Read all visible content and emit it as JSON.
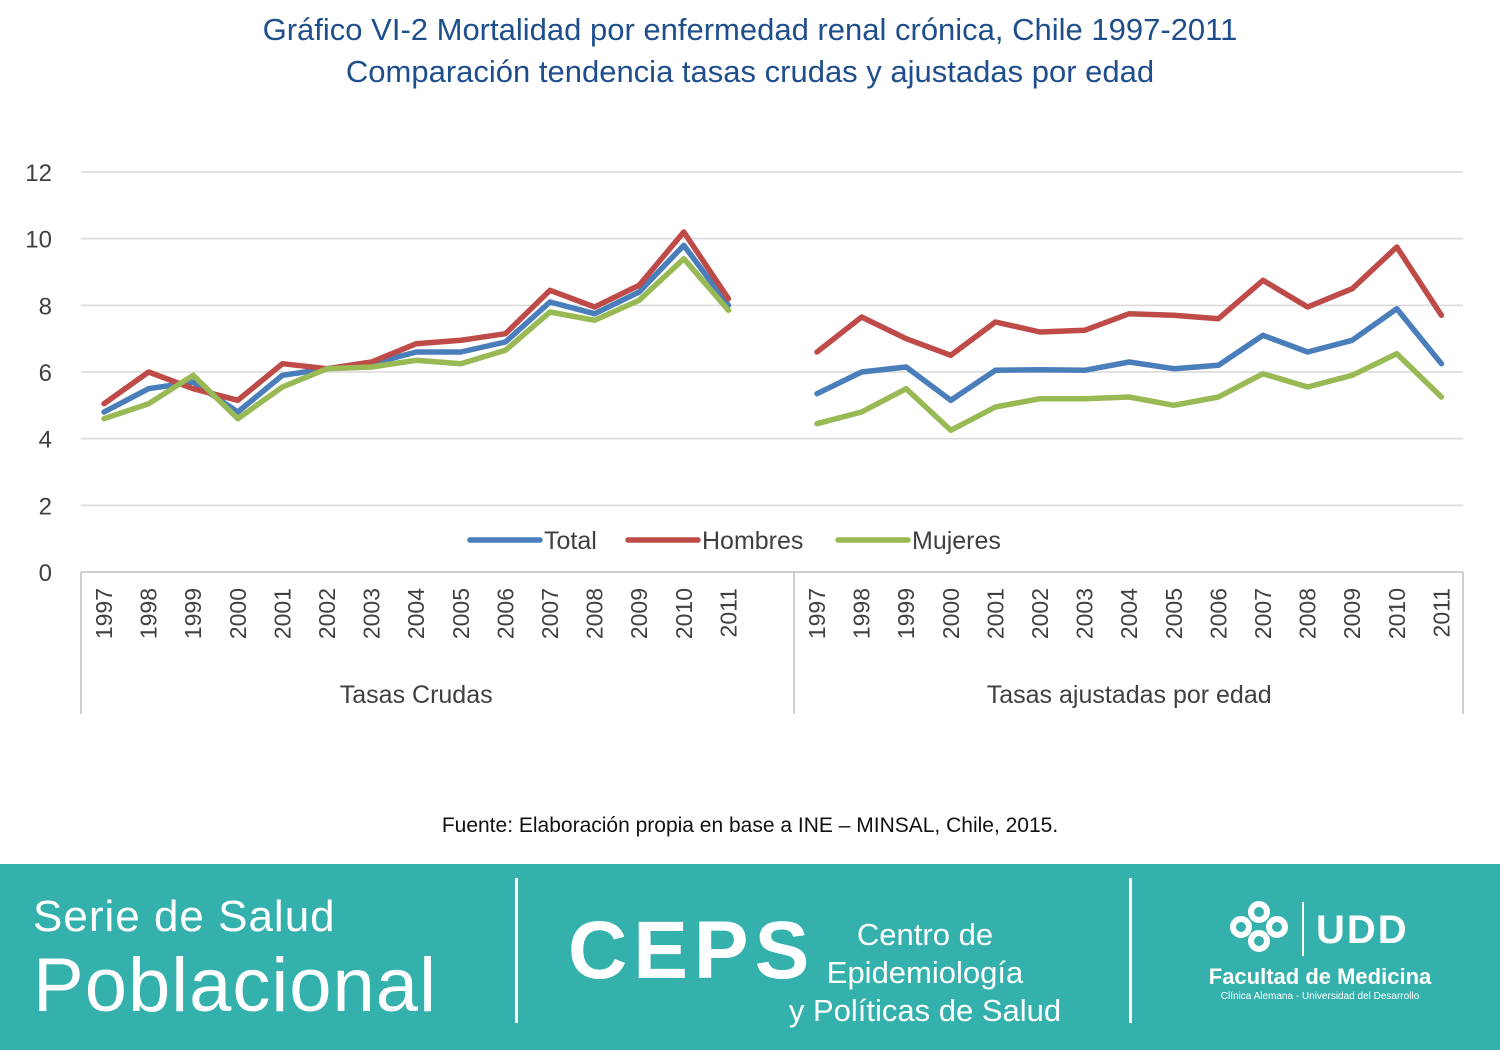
{
  "title_line1": "Gráfico VI-2 Mortalidad por enfermedad renal crónica, Chile 1997-2011",
  "title_line2": "Comparación tendencia tasas crudas y ajustadas por edad",
  "source": "Fuente: Elaboración propia en base a INE – MINSAL, Chile, 2015.",
  "footer": {
    "serie_line1": "Serie de Salud",
    "serie_line2": "Poblacional",
    "ceps": "CEPS",
    "ceps_line1": "Centro de Epidemiología",
    "ceps_line2": "y Políticas de Salud",
    "udd": "UDD",
    "facultad": "Facultad de Medicina",
    "facultad_sub": "Clínica Alemana - Universidad del Desarrollo"
  },
  "chart_data": {
    "type": "line",
    "title": "Gráfico VI-2 Mortalidad por enfermedad renal crónica, Chile 1997-2011",
    "subtitle": "Comparación tendencia tasas crudas y ajustadas por edad",
    "xlabel": "",
    "ylabel": "",
    "ylim": [
      0,
      12
    ],
    "yticks": [
      0,
      2,
      4,
      6,
      8,
      10,
      12
    ],
    "grid": true,
    "legend_position": "bottom-inside",
    "groups": [
      {
        "label": "Tasas Crudas",
        "categories": [
          "1997",
          "1998",
          "1999",
          "2000",
          "2001",
          "2002",
          "2003",
          "2004",
          "2005",
          "2006",
          "2007",
          "2008",
          "2009",
          "2010",
          "2011"
        ]
      },
      {
        "label": "Tasas ajustadas por edad",
        "categories": [
          "1997",
          "1998",
          "1999",
          "2000",
          "2001",
          "2002",
          "2003",
          "2004",
          "2005",
          "2006",
          "2007",
          "2008",
          "2009",
          "2010",
          "2011"
        ]
      }
    ],
    "series": [
      {
        "name": "Total",
        "color": "#4a7ebb",
        "values": [
          [
            4.8,
            5.5,
            5.7,
            4.8,
            5.9,
            6.1,
            6.25,
            6.6,
            6.6,
            6.9,
            8.1,
            7.75,
            8.4,
            9.8,
            8.0
          ],
          [
            5.35,
            6.0,
            6.15,
            5.15,
            6.05,
            6.07,
            6.05,
            6.3,
            6.1,
            6.2,
            7.1,
            6.6,
            6.95,
            7.9,
            6.25
          ]
        ]
      },
      {
        "name": "Hombres",
        "color": "#be4b48",
        "values": [
          [
            5.05,
            6.0,
            5.5,
            5.15,
            6.25,
            6.1,
            6.3,
            6.85,
            6.95,
            7.15,
            8.45,
            7.95,
            8.6,
            10.2,
            8.2
          ],
          [
            6.6,
            7.65,
            7.0,
            6.5,
            7.5,
            7.2,
            7.25,
            7.75,
            7.7,
            7.6,
            8.75,
            7.95,
            8.5,
            9.75,
            7.7
          ]
        ]
      },
      {
        "name": "Mujeres",
        "color": "#98b954",
        "values": [
          [
            4.6,
            5.05,
            5.9,
            4.6,
            5.55,
            6.1,
            6.15,
            6.35,
            6.25,
            6.65,
            7.8,
            7.55,
            8.15,
            9.4,
            7.85
          ],
          [
            4.45,
            4.8,
            5.5,
            4.25,
            4.95,
            5.2,
            5.2,
            5.25,
            5.0,
            5.25,
            5.95,
            5.55,
            5.9,
            6.55,
            5.25
          ]
        ]
      }
    ]
  }
}
